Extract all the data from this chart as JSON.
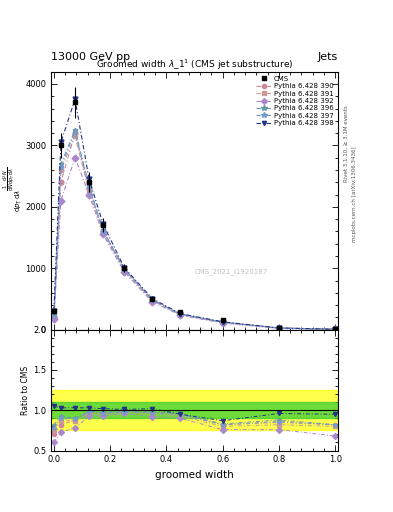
{
  "title": "Groomed width $\\lambda\\_1^1$ (CMS jet substructure)",
  "top_label_left": "13000 GeV pp",
  "top_label_right": "Jets",
  "right_label_top": "Rivet 3.1.10, ≥ 3.1M events",
  "right_label_bottom": "mcplots.cern.ch [arXiv:1306.3436]",
  "watermark": "CMS_2021_I1920187",
  "xlabel": "groomed width",
  "ylabel_ratio": "Ratio to CMS",
  "x": [
    0.0,
    0.025,
    0.075,
    0.125,
    0.175,
    0.25,
    0.35,
    0.45,
    0.6,
    0.8,
    1.0
  ],
  "cms_y": [
    300,
    3000,
    3700,
    2400,
    1700,
    1000,
    500,
    280,
    150,
    30,
    8
  ],
  "cms_yerr": [
    40,
    200,
    250,
    160,
    110,
    65,
    40,
    25,
    15,
    6,
    2
  ],
  "pythia_390": [
    200,
    2400,
    3200,
    2300,
    1600,
    980,
    480,
    250,
    120,
    25,
    6
  ],
  "pythia_391": [
    220,
    2600,
    3150,
    2250,
    1580,
    960,
    470,
    245,
    115,
    24,
    6
  ],
  "pythia_392": [
    170,
    2100,
    2800,
    2200,
    1550,
    940,
    450,
    235,
    108,
    22,
    5
  ],
  "pythia_396": [
    240,
    2700,
    3250,
    2350,
    1620,
    990,
    485,
    252,
    122,
    26,
    6
  ],
  "pythia_397": [
    230,
    2650,
    3220,
    2320,
    1605,
    985,
    482,
    250,
    120,
    25,
    6
  ],
  "pythia_398": [
    310,
    3050,
    3750,
    2450,
    1720,
    1010,
    505,
    260,
    128,
    28,
    7
  ],
  "color_390": "#cc8899",
  "color_391": "#cc9999",
  "color_392": "#aa88cc",
  "color_396": "#6699aa",
  "color_397": "#7799cc",
  "color_398": "#223388",
  "ylim_main": [
    0,
    4200
  ],
  "yticks_main": [
    0,
    1000,
    2000,
    3000,
    4000
  ],
  "ylim_ratio": [
    0.5,
    2.0
  ],
  "yticks_ratio": [
    0.5,
    1.0,
    1.5,
    2.0
  ],
  "band_yellow_lo": 0.75,
  "band_yellow_hi": 1.25,
  "band_green_lo": 0.9,
  "band_green_hi": 1.1,
  "ratio_390": [
    0.7,
    0.82,
    0.88,
    0.97,
    0.96,
    0.98,
    0.97,
    0.95,
    0.82,
    0.85,
    0.82
  ],
  "ratio_391": [
    0.75,
    0.88,
    0.87,
    0.95,
    0.95,
    0.97,
    0.96,
    0.93,
    0.8,
    0.82,
    0.8
  ],
  "ratio_392": [
    0.6,
    0.73,
    0.78,
    0.93,
    0.93,
    0.96,
    0.92,
    0.9,
    0.76,
    0.76,
    0.68
  ],
  "ratio_396": [
    0.82,
    0.93,
    0.9,
    0.99,
    0.97,
    0.99,
    0.98,
    0.96,
    0.83,
    0.88,
    0.82
  ],
  "ratio_397": [
    0.78,
    0.91,
    0.89,
    0.98,
    0.96,
    0.98,
    0.97,
    0.95,
    0.82,
    0.86,
    0.82
  ],
  "ratio_398": [
    1.05,
    1.03,
    1.03,
    1.03,
    1.02,
    1.01,
    1.02,
    0.95,
    0.87,
    0.96,
    0.95
  ]
}
